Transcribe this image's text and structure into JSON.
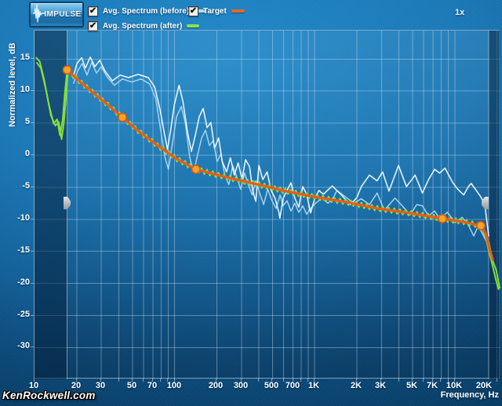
{
  "app": {
    "zoom_indicator": "1x",
    "watermark": "KenRockwell.com"
  },
  "toolbar": {
    "impulse_button": "IMPULSE"
  },
  "legend": {
    "items": [
      {
        "label": "Avg. Spectrum (before)",
        "checked": true,
        "color": "#b8dcf2"
      },
      {
        "label": "Target",
        "checked": true,
        "color": "#e8662a"
      },
      {
        "label": "Avg. Spectrum (after)",
        "checked": true,
        "color": "#8ce04e"
      }
    ]
  },
  "chart_data": {
    "type": "line",
    "x_axis": {
      "label": "Frequency, Hz",
      "scale": "log",
      "min": 10,
      "max": 21000,
      "tick_labels": [
        [
          10,
          "10"
        ],
        [
          20,
          "20"
        ],
        [
          30,
          "30"
        ],
        [
          50,
          "50"
        ],
        [
          70,
          "70"
        ],
        [
          100,
          "100"
        ],
        [
          200,
          "200"
        ],
        [
          300,
          "300"
        ],
        [
          500,
          "500"
        ],
        [
          700,
          "700"
        ],
        [
          1000,
          "1K"
        ],
        [
          2000,
          "2K"
        ],
        [
          3000,
          "3K"
        ],
        [
          5000,
          "5K"
        ],
        [
          7000,
          "7K"
        ],
        [
          10000,
          "10K"
        ],
        [
          20000,
          "20K"
        ]
      ],
      "grid_hz": [
        20,
        30,
        40,
        50,
        60,
        70,
        80,
        90,
        100,
        200,
        300,
        400,
        500,
        600,
        700,
        800,
        900,
        1000,
        2000,
        3000,
        4000,
        5000,
        6000,
        7000,
        8000,
        9000,
        10000,
        20000
      ]
    },
    "y_axis": {
      "label": "Normalized level, dB",
      "min": -35,
      "max": 19.4,
      "ticks": [
        15,
        10,
        5,
        0,
        -5,
        -10,
        -15,
        -20,
        -25,
        -30
      ]
    },
    "overlays": {
      "excluded_bands_hz": [
        [
          10,
          17.1
        ],
        [
          17450,
          21000
        ]
      ],
      "handle_level_db": -7.6
    },
    "series": [
      {
        "name": "Avg. Spectrum (before) ch1",
        "color": "#a6d2ee",
        "width": 1.5,
        "points": [
          [
            19,
            11.2
          ],
          [
            20.3,
            13.1
          ],
          [
            21.9,
            14.3
          ],
          [
            23.7,
            12.5
          ],
          [
            25.6,
            14.5
          ],
          [
            27.7,
            12.8
          ],
          [
            29.9,
            13.8
          ],
          [
            33.2,
            12.1
          ],
          [
            37.2,
            10.9
          ],
          [
            42.4,
            11.9
          ],
          [
            49.5,
            11.4
          ],
          [
            57.7,
            11.9
          ],
          [
            66.4,
            11.1
          ],
          [
            73.5,
            8.8
          ],
          [
            80.3,
            3.3
          ],
          [
            85.6,
            -0.4
          ],
          [
            90.3,
            -2.2
          ],
          [
            96.9,
            2.1
          ],
          [
            103.3,
            6
          ],
          [
            111.6,
            7.6
          ],
          [
            119.1,
            5.1
          ],
          [
            128.4,
            -0.4
          ],
          [
            136.9,
            -2.6
          ],
          [
            146.4,
            0.2
          ],
          [
            156,
            2.7
          ],
          [
            166.1,
            3.9
          ],
          [
            177.3,
            1.5
          ],
          [
            188.9,
            2.3
          ],
          [
            201,
            -1
          ],
          [
            214,
            0.2
          ],
          [
            228,
            -3.1
          ],
          [
            244,
            -4.6
          ],
          [
            260,
            -1.6
          ],
          [
            278,
            -3.4
          ],
          [
            296,
            -5.3
          ],
          [
            316,
            -2.8
          ],
          [
            336,
            -4.6
          ],
          [
            358,
            -6.2
          ],
          [
            380,
            -4
          ],
          [
            405,
            -5.9
          ],
          [
            432,
            -7.7
          ],
          [
            462,
            -5.3
          ],
          [
            496,
            -7.1
          ],
          [
            530,
            -8.3
          ],
          [
            566,
            -6.2
          ],
          [
            596,
            -7.9
          ],
          [
            634,
            -7.1
          ],
          [
            677,
            -8.7
          ],
          [
            722,
            -7.5
          ],
          [
            770,
            -8.9
          ],
          [
            822,
            -7.9
          ],
          [
            877,
            -9.2
          ],
          [
            935,
            -8.3
          ],
          [
            1015,
            -7.5
          ],
          [
            1125,
            -6.7
          ],
          [
            1245,
            -7.5
          ],
          [
            1370,
            -6.5
          ],
          [
            1440,
            -5.5
          ],
          [
            1660,
            -6.5
          ],
          [
            1900,
            -7.5
          ],
          [
            2150,
            -6.8
          ],
          [
            2460,
            -7.7
          ],
          [
            2790,
            -5.9
          ],
          [
            3140,
            -8.6
          ],
          [
            3740,
            -6.7
          ],
          [
            4220,
            -7.9
          ],
          [
            4800,
            -9.3
          ],
          [
            5350,
            -7.7
          ],
          [
            5870,
            -7.9
          ],
          [
            6500,
            -9.5
          ],
          [
            7180,
            -8.7
          ],
          [
            7800,
            -9.9
          ],
          [
            8850,
            -8.9
          ],
          [
            10100,
            -10.5
          ],
          [
            11280,
            -9.7
          ],
          [
            12500,
            -10.9
          ],
          [
            13670,
            -12.6
          ],
          [
            14650,
            -11.1
          ],
          [
            15560,
            -12
          ],
          [
            16600,
            -13.2
          ]
        ]
      },
      {
        "name": "Avg. Spectrum (before) ch2",
        "color": "#f2f9fe",
        "width": 1.5,
        "points": [
          [
            18.8,
            12.1
          ],
          [
            20.1,
            14.3
          ],
          [
            21.7,
            15.2
          ],
          [
            23.1,
            13.6
          ],
          [
            25,
            15.3
          ],
          [
            27,
            13.8
          ],
          [
            29.2,
            14.8
          ],
          [
            31.9,
            13.1
          ],
          [
            35.9,
            11.6
          ],
          [
            40.8,
            12.5
          ],
          [
            46.9,
            12.1
          ],
          [
            54.8,
            12.6
          ],
          [
            64.9,
            12.1
          ],
          [
            72.2,
            10.6
          ],
          [
            78.9,
            7
          ],
          [
            84.3,
            3.5
          ],
          [
            88.9,
            0.9
          ],
          [
            93.8,
            3.9
          ],
          [
            99.6,
            7.9
          ],
          [
            107.6,
            10.9
          ],
          [
            114.6,
            8.4
          ],
          [
            123.8,
            3.5
          ],
          [
            131.9,
            0.6
          ],
          [
            140.6,
            3.1
          ],
          [
            149.9,
            6
          ],
          [
            159.9,
            7.3
          ],
          [
            170.5,
            4.3
          ],
          [
            181.4,
            5.1
          ],
          [
            192.7,
            1.1
          ],
          [
            206,
            2.7
          ],
          [
            219,
            -1
          ],
          [
            235,
            -2.6
          ],
          [
            250,
            -0.4
          ],
          [
            267,
            -3.1
          ],
          [
            284,
            -1.2
          ],
          [
            303,
            -3.7
          ],
          [
            321,
            -0.7
          ],
          [
            343,
            -1.8
          ],
          [
            361,
            -5.5
          ],
          [
            380,
            -7.2
          ],
          [
            400,
            -1.6
          ],
          [
            426,
            -3.8
          ],
          [
            457,
            -2.6
          ],
          [
            489,
            -5.5
          ],
          [
            521,
            -6.7
          ],
          [
            555,
            -8.9
          ],
          [
            564,
            -9.8
          ],
          [
            596,
            -6.7
          ],
          [
            634,
            -5.5
          ],
          [
            677,
            -4.3
          ],
          [
            722,
            -6.7
          ],
          [
            770,
            -8.1
          ],
          [
            822,
            -4.9
          ],
          [
            877,
            -6.1
          ],
          [
            935,
            -9
          ],
          [
            1003,
            -6.7
          ],
          [
            1072,
            -5.5
          ],
          [
            1155,
            -6.1
          ],
          [
            1245,
            -5.4
          ],
          [
            1337,
            -4.8
          ],
          [
            1439,
            -5.5
          ],
          [
            1550,
            -6.2
          ],
          [
            1676,
            -7
          ],
          [
            1800,
            -7.7
          ],
          [
            2000,
            -6.6
          ],
          [
            2151,
            -4.9
          ],
          [
            2458,
            -3.1
          ],
          [
            2790,
            -4
          ],
          [
            3050,
            -2.6
          ],
          [
            3390,
            -5.6
          ],
          [
            3970,
            -1.6
          ],
          [
            4520,
            -4.9
          ],
          [
            5210,
            -3.1
          ],
          [
            5870,
            -5.9
          ],
          [
            6500,
            -3.8
          ],
          [
            7180,
            -2.2
          ],
          [
            7800,
            -2.8
          ],
          [
            8500,
            -2
          ],
          [
            9700,
            -4.3
          ],
          [
            10500,
            -5.3
          ],
          [
            11580,
            -6.2
          ],
          [
            12500,
            -4.9
          ],
          [
            13100,
            -4.4
          ],
          [
            14350,
            -5.6
          ],
          [
            15340,
            -6.5
          ],
          [
            16360,
            -7.7
          ],
          [
            17050,
            -10.8
          ],
          [
            17450,
            -12.6
          ]
        ]
      },
      {
        "name": "Avg. Spectrum (after) low-end ch1",
        "color": "#85df3c",
        "width": 2,
        "points": [
          [
            10.3,
            15.2
          ],
          [
            10.9,
            14.6
          ],
          [
            11.7,
            11.8
          ],
          [
            12.7,
            7.8
          ],
          [
            13.7,
            4.9
          ],
          [
            14.5,
            5.6
          ],
          [
            15.2,
            3.1
          ],
          [
            15.9,
            5.6
          ],
          [
            16.5,
            9.8
          ],
          [
            17.1,
            13.2
          ]
        ]
      },
      {
        "name": "Avg. Spectrum (after) low-end ch2",
        "color": "#85df3c",
        "width": 2,
        "points": [
          [
            10.4,
            14.4
          ],
          [
            11.1,
            13.6
          ],
          [
            12,
            10.5
          ],
          [
            13.1,
            6.2
          ],
          [
            14.1,
            4.6
          ],
          [
            14.9,
            5.2
          ],
          [
            15.6,
            2.5
          ],
          [
            16.2,
            5
          ],
          [
            16.8,
            9
          ],
          [
            17.3,
            12.8
          ]
        ]
      },
      {
        "name": "Avg. Spectrum (after)",
        "color": "#85df3c",
        "width": 2,
        "jitter_db": 0.4,
        "points": [
          [
            17.1,
            13.2
          ],
          [
            20.8,
            11.6
          ],
          [
            27,
            9.5
          ],
          [
            34.9,
            7.5
          ],
          [
            42.4,
            5.9
          ],
          [
            54.8,
            3.8
          ],
          [
            75.6,
            1.5
          ],
          [
            104,
            -0.6
          ],
          [
            142,
            -2.2
          ],
          [
            187,
            -2.9
          ],
          [
            274,
            -3.8
          ],
          [
            402,
            -4.6
          ],
          [
            590,
            -5.5
          ],
          [
            996,
            -6.5
          ],
          [
            1664,
            -7.3
          ],
          [
            2796,
            -8.3
          ],
          [
            4673,
            -9
          ],
          [
            8155,
            -9.9
          ],
          [
            11580,
            -10.4
          ],
          [
            15342,
            -11
          ],
          [
            16600,
            -12.2
          ],
          [
            17450,
            -13.9
          ],
          [
            18640,
            -16
          ],
          [
            19800,
            -18.4
          ],
          [
            20900,
            -20.7
          ]
        ]
      },
      {
        "name": "Avg. Spectrum (after) high-end ch2",
        "color": "#85df3c",
        "width": 2,
        "points": [
          [
            15342,
            -11
          ],
          [
            16600,
            -12.8
          ],
          [
            17450,
            -14.8
          ],
          [
            18500,
            -17
          ],
          [
            19600,
            -19.3
          ],
          [
            20500,
            -20.9
          ]
        ]
      },
      {
        "name": "Target",
        "color": "#ec5a18",
        "width": 3.2,
        "points": [
          [
            17.1,
            13.3
          ],
          [
            20.8,
            11.6
          ],
          [
            27,
            9.5
          ],
          [
            34.9,
            7.5
          ],
          [
            42.4,
            5.9
          ],
          [
            54.8,
            3.8
          ],
          [
            75.6,
            1.5
          ],
          [
            104,
            -0.6
          ],
          [
            142,
            -2.2
          ],
          [
            187,
            -2.9
          ],
          [
            274,
            -3.8
          ],
          [
            402,
            -4.6
          ],
          [
            590,
            -5.5
          ],
          [
            996,
            -6.5
          ],
          [
            1664,
            -7.3
          ],
          [
            2796,
            -8.3
          ],
          [
            4673,
            -9
          ],
          [
            8155,
            -9.9
          ],
          [
            11580,
            -10.4
          ],
          [
            15342,
            -11
          ],
          [
            16590,
            -12.2
          ],
          [
            17452,
            -14.1
          ],
          [
            18640,
            -16.3
          ]
        ],
        "control_points": [
          [
            17.1,
            13.3
          ],
          [
            42.4,
            5.9
          ],
          [
            142,
            -2.2
          ],
          [
            8155,
            -9.9
          ],
          [
            15342,
            -11
          ]
        ],
        "dot_fill": "#f7a12c",
        "dot_stroke": "#cf5c10"
      }
    ]
  }
}
